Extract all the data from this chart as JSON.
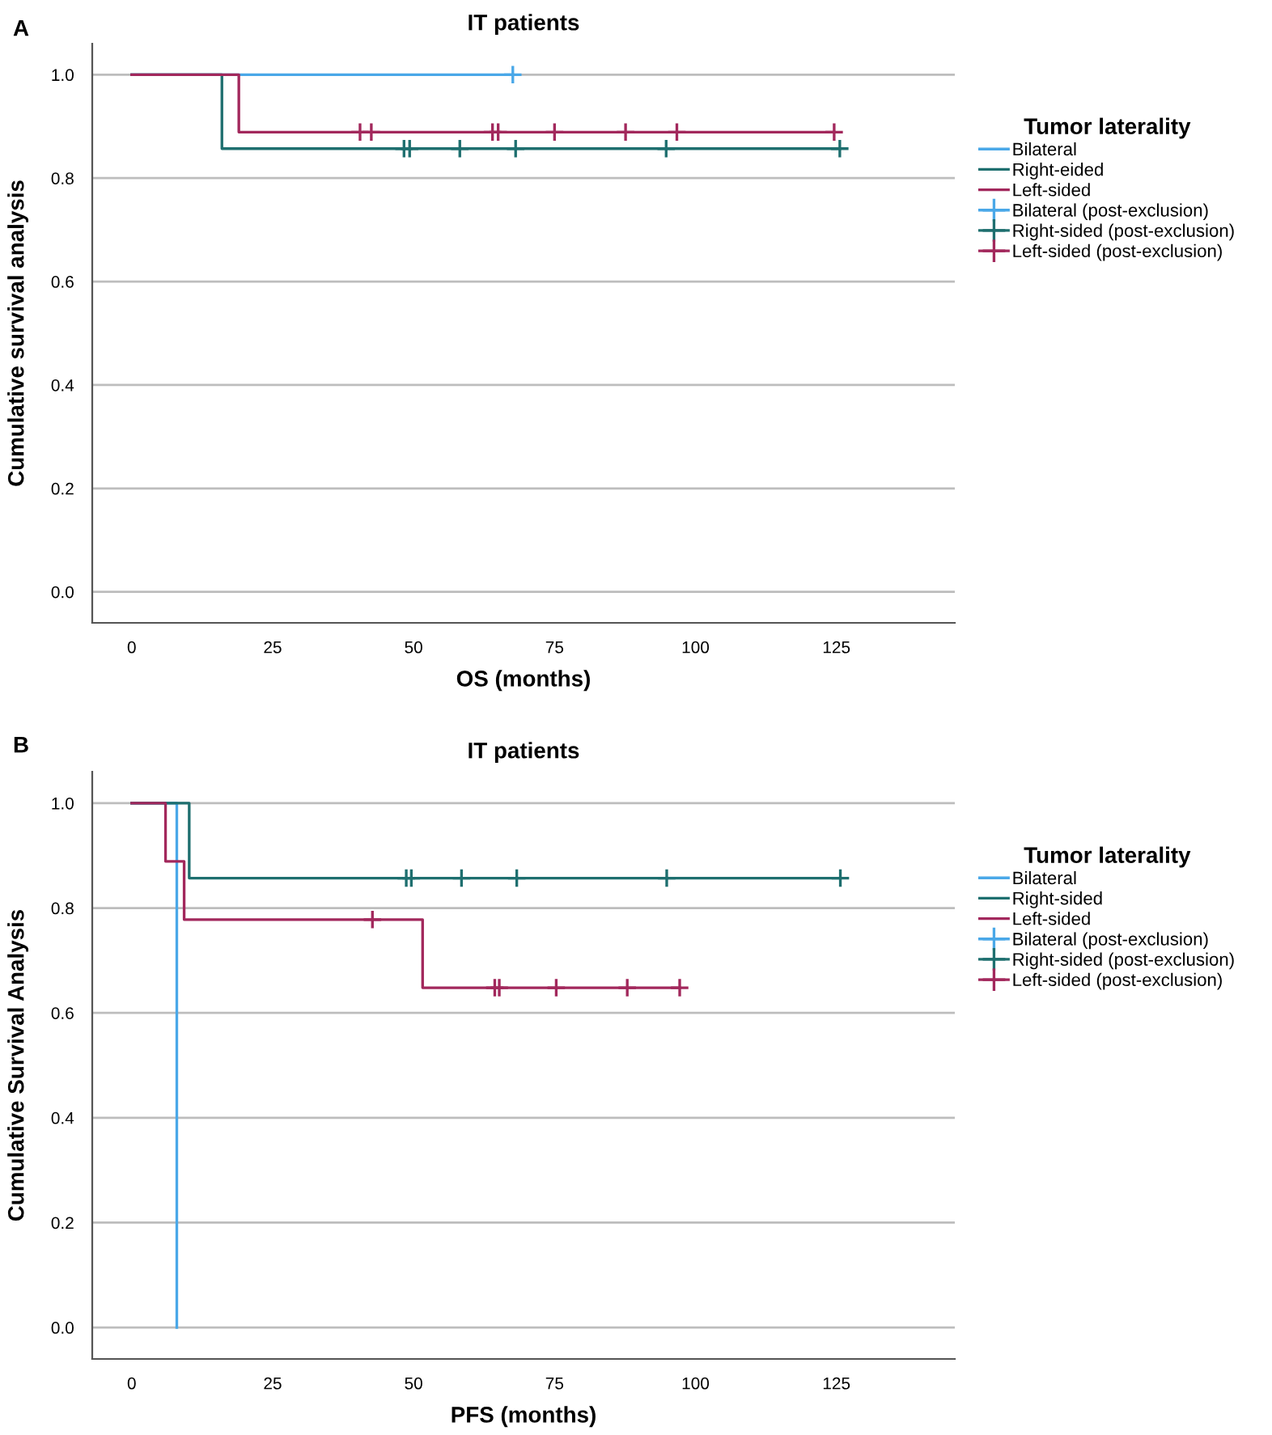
{
  "chart_data": [
    {
      "type": "step",
      "title": "IT patients",
      "xlabel": "OS (months)",
      "ylabel": "Cumulative survival analysis",
      "legend_title": "Tumor laterality",
      "annotations": [
        "A"
      ],
      "xlim": [
        -7,
        146
      ],
      "ylim": [
        -0.06,
        1.06
      ],
      "xticks": [
        0,
        25,
        50,
        75,
        100,
        125
      ],
      "yticks": [
        {
          "value": 0,
          "label": "0.0"
        },
        {
          "value": 0.2,
          "label": "0.2"
        },
        {
          "value": 0.4,
          "label": "0.4"
        },
        {
          "value": 0.6,
          "label": "0.6"
        },
        {
          "value": 0.8,
          "label": "0.8"
        },
        {
          "value": 1,
          "label": "1.0"
        }
      ],
      "grid": "y",
      "legend": "right",
      "series": [
        {
          "name": "Bilateral",
          "color": "#4aa8e8",
          "x": [
            0,
            67.6
          ],
          "values": [
            1,
            1
          ]
        },
        {
          "name": "Right-eided",
          "color": "#1e6f6f",
          "x": [
            0,
            16,
            125.6
          ],
          "values": [
            1,
            0.857,
            0.857
          ]
        },
        {
          "name": "Left-sided",
          "color": "#a2285c",
          "x": [
            0,
            19,
            124.6
          ],
          "values": [
            1,
            0.889,
            0.889
          ]
        },
        {
          "name": "Bilateral (post-exclusion)",
          "type": "scatter",
          "marker": "cross",
          "color": "#4aa8e8",
          "x": [
            67.6
          ],
          "values": [
            1
          ]
        },
        {
          "name": "Right-sided (post-exclusion)",
          "type": "scatter",
          "marker": "cross",
          "color": "#1e6f6f",
          "x": [
            48.3,
            49.3,
            58.2,
            68.1,
            94.8,
            125.6
          ],
          "values": [
            0.857,
            0.857,
            0.857,
            0.857,
            0.857,
            0.857
          ]
        },
        {
          "name": "Left-sided (post-exclusion)",
          "type": "scatter",
          "marker": "cross",
          "color": "#a2285c",
          "x": [
            40.5,
            42.5,
            64,
            65,
            75,
            87.6,
            96.7,
            124.6
          ],
          "values": [
            0.889,
            0.889,
            0.889,
            0.889,
            0.889,
            0.889,
            0.889,
            0.889
          ]
        }
      ]
    },
    {
      "type": "step",
      "title": "IT patients",
      "xlabel": "PFS (months)",
      "ylabel": "Cumulative Survival Analysis",
      "legend_title": "Tumor laterality",
      "annotations": [
        "B"
      ],
      "xlim": [
        -7,
        146
      ],
      "ylim": [
        -0.06,
        1.06
      ],
      "xticks": [
        0,
        25,
        50,
        75,
        100,
        125
      ],
      "yticks": [
        {
          "value": 0,
          "label": "0.0"
        },
        {
          "value": 0.2,
          "label": "0.2"
        },
        {
          "value": 0.4,
          "label": "0.4"
        },
        {
          "value": 0.6,
          "label": "0.6"
        },
        {
          "value": 0.8,
          "label": "0.8"
        },
        {
          "value": 1,
          "label": "1.0"
        }
      ],
      "grid": "y",
      "legend": "right",
      "series": [
        {
          "name": "Bilateral",
          "color": "#4aa8e8",
          "x": [
            0,
            8,
            8
          ],
          "values": [
            1,
            1,
            0
          ]
        },
        {
          "name": "Right-sided",
          "color": "#1e6f6f",
          "x": [
            0,
            10.2,
            125.7
          ],
          "values": [
            1,
            0.857,
            0.857
          ]
        },
        {
          "name": "Left-sided",
          "color": "#a2285c",
          "x": [
            0,
            6,
            9.3,
            51.6,
            97.2
          ],
          "values": [
            1,
            0.889,
            0.778,
            0.648,
            0.648
          ]
        },
        {
          "name": "Bilateral (post-exclusion)",
          "type": "scatter",
          "marker": "cross",
          "color": "#4aa8e8"
        },
        {
          "name": "Right-sided (post-exclusion)",
          "type": "scatter",
          "marker": "cross",
          "color": "#1e6f6f",
          "x": [
            48.7,
            49.6,
            58.5,
            68.3,
            94.9,
            125.7
          ],
          "values": [
            0.857,
            0.857,
            0.857,
            0.857,
            0.857,
            0.857
          ]
        },
        {
          "name": "Left-sided (post-exclusion)",
          "type": "scatter",
          "marker": "cross",
          "color": "#a2285c",
          "x": [
            42.7,
            64.4,
            65.2,
            75.3,
            87.9,
            97.2
          ],
          "values": [
            0.778,
            0.648,
            0.648,
            0.648,
            0.648,
            0.648
          ]
        }
      ]
    }
  ]
}
